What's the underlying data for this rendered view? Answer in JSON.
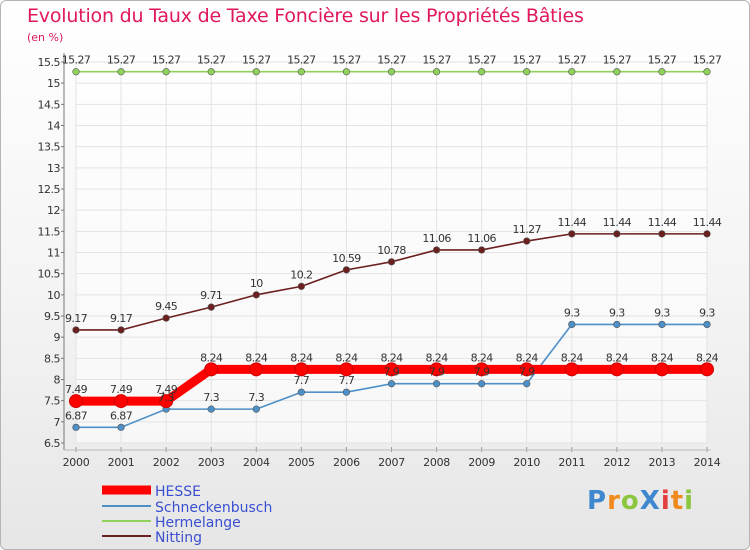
{
  "chart_data": {
    "type": "line",
    "title": "Evolution du Taux de Taxe Foncière sur les Propriétés Bâties",
    "ylabel": "(en %)",
    "xlabel": "",
    "categories": [
      "2000",
      "2001",
      "2002",
      "2003",
      "2004",
      "2005",
      "2006",
      "2007",
      "2008",
      "2009",
      "2010",
      "2011",
      "2012",
      "2013",
      "2014"
    ],
    "ylim": [
      6.5,
      15.5
    ],
    "yticks": [
      "6.5",
      "7",
      "7.5",
      "8",
      "8.5",
      "9",
      "9.5",
      "10",
      "10.5",
      "11",
      "11.5",
      "12",
      "12.5",
      "13",
      "13.5",
      "14",
      "14.5",
      "15",
      "15.5"
    ],
    "series": [
      {
        "name": "HESSE",
        "color": "#ff0000",
        "values": [
          7.49,
          7.49,
          7.49,
          8.24,
          8.24,
          8.24,
          8.24,
          8.24,
          8.24,
          8.24,
          8.24,
          8.24,
          8.24,
          8.24,
          8.24
        ],
        "labels": [
          "7.49",
          "7.49",
          "7.49",
          "8.24",
          "8.24",
          "8.24",
          "8.24",
          "8.24",
          "8.24",
          "8.24",
          "8.24",
          "8.24",
          "8.24",
          "8.24",
          "8.24"
        ]
      },
      {
        "name": "Schneckenbusch",
        "color": "#4d8fc7",
        "values": [
          6.87,
          6.87,
          7.3,
          7.3,
          7.3,
          7.7,
          7.7,
          7.9,
          7.9,
          7.9,
          7.9,
          9.3,
          9.3,
          9.3,
          9.3
        ],
        "labels": [
          "6.87",
          "6.87",
          "7.3",
          "7.3",
          "7.3",
          "7.7",
          "7.7",
          "7.9",
          "7.9",
          "7.9",
          "7.9",
          "9.3",
          "9.3",
          "9.3",
          "9.3"
        ]
      },
      {
        "name": "Hermelange",
        "color": "#8fd15a",
        "values": [
          15.27,
          15.27,
          15.27,
          15.27,
          15.27,
          15.27,
          15.27,
          15.27,
          15.27,
          15.27,
          15.27,
          15.27,
          15.27,
          15.27,
          15.27
        ],
        "labels": [
          "15.27",
          "15.27",
          "15.27",
          "15.27",
          "15.27",
          "15.27",
          "15.27",
          "15.27",
          "15.27",
          "15.27",
          "15.27",
          "15.27",
          "15.27",
          "15.27",
          "15.27"
        ]
      },
      {
        "name": "Nitting",
        "color": "#6b1f1f",
        "values": [
          9.17,
          9.17,
          9.45,
          9.71,
          10,
          10.2,
          10.59,
          10.78,
          11.06,
          11.06,
          11.27,
          11.44,
          11.44,
          11.44,
          11.44
        ],
        "labels": [
          "9.17",
          "9.17",
          "9.45",
          "9.71",
          "10",
          "10.2",
          "10.59",
          "10.78",
          "11.06",
          "11.06",
          "11.27",
          "11.44",
          "11.44",
          "11.44",
          "11.44"
        ]
      }
    ],
    "legend": [
      "HESSE",
      "Schneckenbusch",
      "Hermelange",
      "Nitting"
    ]
  },
  "logo": {
    "text": "ProXiti"
  }
}
